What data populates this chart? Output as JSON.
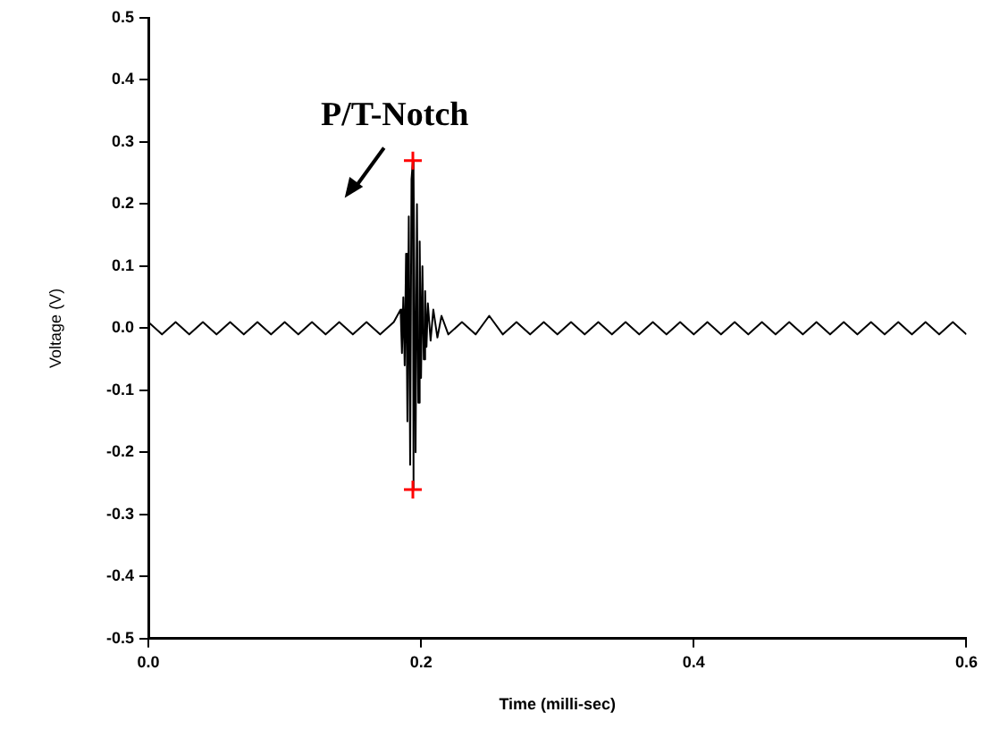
{
  "chart_data": {
    "type": "line",
    "xlabel": "Time (milli-sec)",
    "ylabel": "Voltage (V)",
    "xlim": [
      0,
      0.6
    ],
    "xticks": [
      {
        "value": 0,
        "label": "0.0"
      },
      0.2,
      0.4,
      0.6
    ],
    "ylim": [
      -0.5,
      0.5
    ],
    "yticks": [
      -0.5,
      -0.4,
      -0.3,
      -0.2,
      -0.1,
      {
        "value": 0,
        "label": "0.0"
      },
      0.1,
      0.2,
      0.3,
      0.4,
      0.5
    ],
    "grid": false,
    "legend": false,
    "annotations": [
      "P/T-Notch"
    ],
    "series": [
      {
        "type": "line",
        "color": "#000000",
        "marker": "none",
        "x": [
          0,
          0.01,
          0.02,
          0.03,
          0.04,
          0.05,
          0.06,
          0.07,
          0.08,
          0.09,
          0.1,
          0.11,
          0.12,
          0.13,
          0.14,
          0.15,
          0.16,
          0.17,
          0.18,
          0.185,
          0.186,
          0.187,
          0.188,
          0.189,
          0.19,
          0.191,
          0.192,
          0.193,
          0.194,
          0.194,
          0.195,
          0.196,
          0.197,
          0.198,
          0.199,
          0.2,
          0.201,
          0.202,
          0.203,
          0.204,
          0.205,
          0.207,
          0.209,
          0.212,
          0.215,
          0.22,
          0.23,
          0.24,
          0.25,
          0.26,
          0.27,
          0.28,
          0.29,
          0.3,
          0.31,
          0.32,
          0.33,
          0.34,
          0.35,
          0.36,
          0.37,
          0.38,
          0.39,
          0.4,
          0.41,
          0.42,
          0.43,
          0.44,
          0.45,
          0.46,
          0.47,
          0.48,
          0.49,
          0.5,
          0.51,
          0.52,
          0.53,
          0.54,
          0.55,
          0.56,
          0.57,
          0.58,
          0.59,
          0.6
        ],
        "values": [
          0.01,
          -0.01,
          0.01,
          -0.01,
          0.01,
          -0.01,
          0.01,
          -0.01,
          0.01,
          -0.01,
          0.01,
          -0.01,
          0.01,
          -0.01,
          0.01,
          -0.01,
          0.01,
          -0.01,
          0.01,
          0.03,
          -0.04,
          0.05,
          -0.06,
          0.12,
          -0.15,
          0.18,
          -0.22,
          0.24,
          0.27,
          -0.26,
          0.25,
          -0.2,
          0.2,
          -0.12,
          0.14,
          -0.08,
          0.1,
          -0.05,
          0.06,
          -0.03,
          0.04,
          -0.02,
          0.03,
          -0.015,
          0.02,
          -0.01,
          0.01,
          -0.01,
          0.02,
          -0.01,
          0.01,
          -0.01,
          0.01,
          -0.01,
          0.01,
          -0.01,
          0.01,
          -0.01,
          0.01,
          -0.01,
          0.01,
          -0.01,
          0.01,
          -0.01,
          0.01,
          -0.01,
          0.01,
          -0.01,
          0.01,
          -0.01,
          0.01,
          -0.01,
          0.01,
          -0.01,
          0.01,
          -0.01,
          0.01,
          -0.01,
          0.01,
          -0.01,
          0.01,
          -0.01,
          0.01,
          -0.01
        ]
      },
      {
        "type": "scatter",
        "color": "#ff0000",
        "marker": "cross",
        "x": [
          0.194,
          0.194
        ],
        "values": [
          0.27,
          -0.26
        ]
      }
    ]
  }
}
